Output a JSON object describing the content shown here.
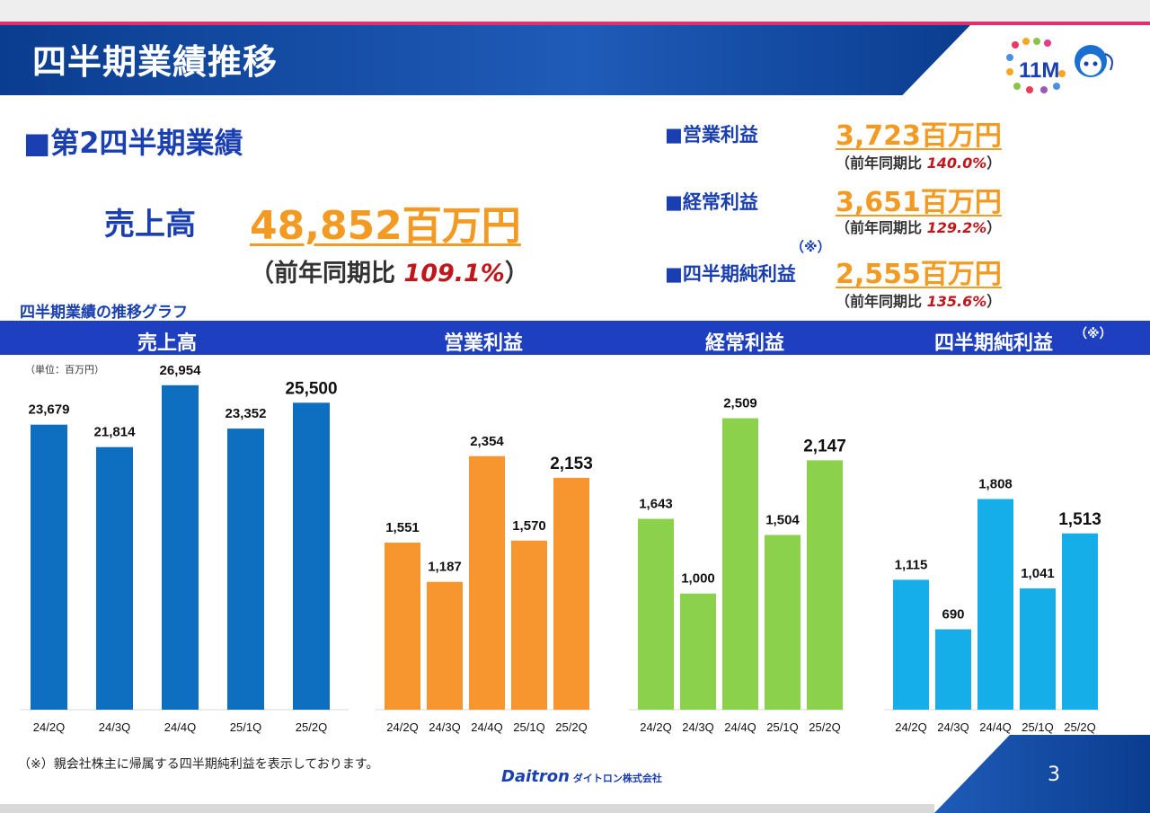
{
  "header": {
    "title": "四半期業績推移",
    "logo_text": "11M"
  },
  "summary": {
    "heading": "■第2四半期業績",
    "sales_label": "売上高",
    "sales_value": "48,852百万円",
    "sales_ratio_prefix": "（前年同期比",
    "sales_ratio_value": "109.1%",
    "sales_ratio_suffix": "）",
    "metrics": [
      {
        "label": "■営業利益",
        "value": "3,723百万円",
        "ratio_prefix": "（前年同期比",
        "ratio_value": "140.0%",
        "ratio_suffix": "）"
      },
      {
        "label": "■経常利益",
        "value": "3,651百万円",
        "ratio_prefix": "（前年同期比",
        "ratio_value": "129.2%",
        "ratio_suffix": "）"
      },
      {
        "label": "■四半期純利益",
        "value": "2,555百万円",
        "ratio_prefix": "（前年同期比",
        "ratio_value": "135.6%",
        "ratio_suffix": "）"
      }
    ],
    "note_mark": "（※）"
  },
  "graph_title": "四半期業績の推移グラフ",
  "band_labels": [
    "売上高",
    "営業利益",
    "経常利益",
    "四半期純利益"
  ],
  "band_note": "（※）",
  "unit_label": "（単位：百万円）",
  "chart_data": [
    {
      "type": "bar",
      "title": "売上高",
      "categories": [
        "24/2Q",
        "24/3Q",
        "24/4Q",
        "25/1Q",
        "25/2Q"
      ],
      "values": [
        23679,
        21814,
        26954,
        23352,
        25500
      ],
      "labels": [
        "23,679",
        "21,814",
        "26,954",
        "23,352",
        "25,500"
      ],
      "color": "#0e6fc0",
      "ylim": [
        0,
        30000
      ]
    },
    {
      "type": "bar",
      "title": "営業利益",
      "categories": [
        "24/2Q",
        "24/3Q",
        "24/4Q",
        "25/1Q",
        "25/2Q"
      ],
      "values": [
        1551,
        1187,
        2354,
        1570,
        2153
      ],
      "labels": [
        "1,551",
        "1,187",
        "2,354",
        "1,570",
        "2,153"
      ],
      "color": "#f7962f",
      "ylim": [
        0,
        3000
      ]
    },
    {
      "type": "bar",
      "title": "経常利益",
      "categories": [
        "24/2Q",
        "24/3Q",
        "24/4Q",
        "25/1Q",
        "25/2Q"
      ],
      "values": [
        1643,
        1000,
        2509,
        1504,
        2147
      ],
      "labels": [
        "1,643",
        "1,000",
        "2,509",
        "1,504",
        "2,147"
      ],
      "color": "#8bd14b",
      "ylim": [
        0,
        3000
      ]
    },
    {
      "type": "bar",
      "title": "四半期純利益",
      "categories": [
        "24/2Q",
        "24/3Q",
        "24/4Q",
        "25/1Q",
        "25/2Q"
      ],
      "values": [
        1115,
        690,
        1808,
        1041,
        1513
      ],
      "labels": [
        "1,115",
        "690",
        "1,808",
        "1,041",
        "1,513"
      ],
      "color": "#16aee8",
      "ylim": [
        0,
        2500
      ]
    }
  ],
  "footer": {
    "note": "（※）親会社株主に帰属する四半期純利益を表示しております。",
    "company": "Daitron",
    "company_jp": "ダイトロン株式会社",
    "page_number": "3"
  },
  "colors": {
    "accent_blue": "#1a3fb0",
    "orange": "#f39a23",
    "red": "#c0161c"
  }
}
